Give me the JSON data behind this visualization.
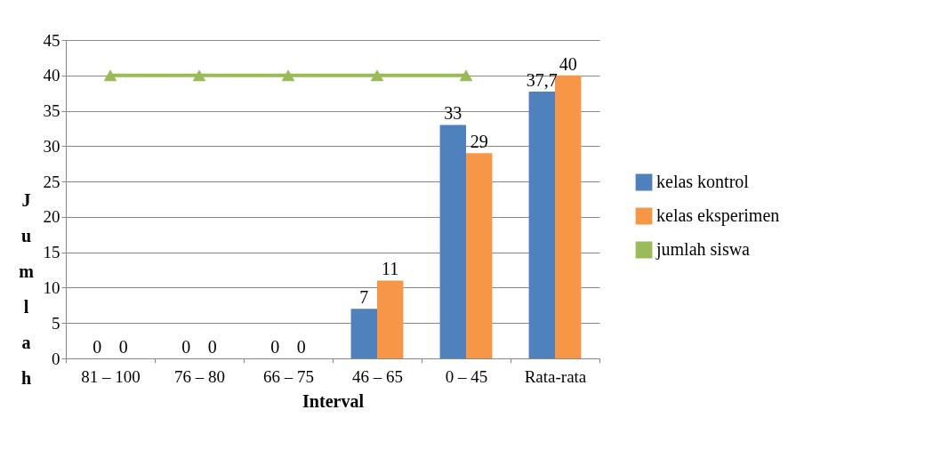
{
  "chart_data": {
    "type": "bar",
    "xlabel": "Interval",
    "ylabel": "Jumlah",
    "categories": [
      "81 – 100",
      "76 – 80",
      "66 – 75",
      "46 – 65",
      "0 – 45",
      "Rata-rata"
    ],
    "series": [
      {
        "name": "kelas kontrol",
        "color": "#4f81bd",
        "values": [
          0,
          0,
          0,
          7,
          33,
          37.7
        ],
        "value_labels": [
          "0",
          "0",
          "0",
          "7",
          "33",
          "37,7"
        ]
      },
      {
        "name": "kelas eksperimen",
        "color": "#f79646",
        "values": [
          0,
          0,
          0,
          11,
          29,
          40
        ],
        "value_labels": [
          "0",
          "0",
          "0",
          "11",
          "29",
          "40"
        ]
      },
      {
        "name": "jumlah siswa",
        "type": "line",
        "color": "#9bbb59",
        "values": [
          40,
          40,
          40,
          40,
          40,
          null
        ],
        "marker": "triangle"
      }
    ],
    "ylim": [
      0,
      45
    ],
    "yticks": [
      0,
      5,
      10,
      15,
      20,
      25,
      30,
      35,
      40,
      45
    ],
    "grid": "y",
    "legend": "right"
  }
}
